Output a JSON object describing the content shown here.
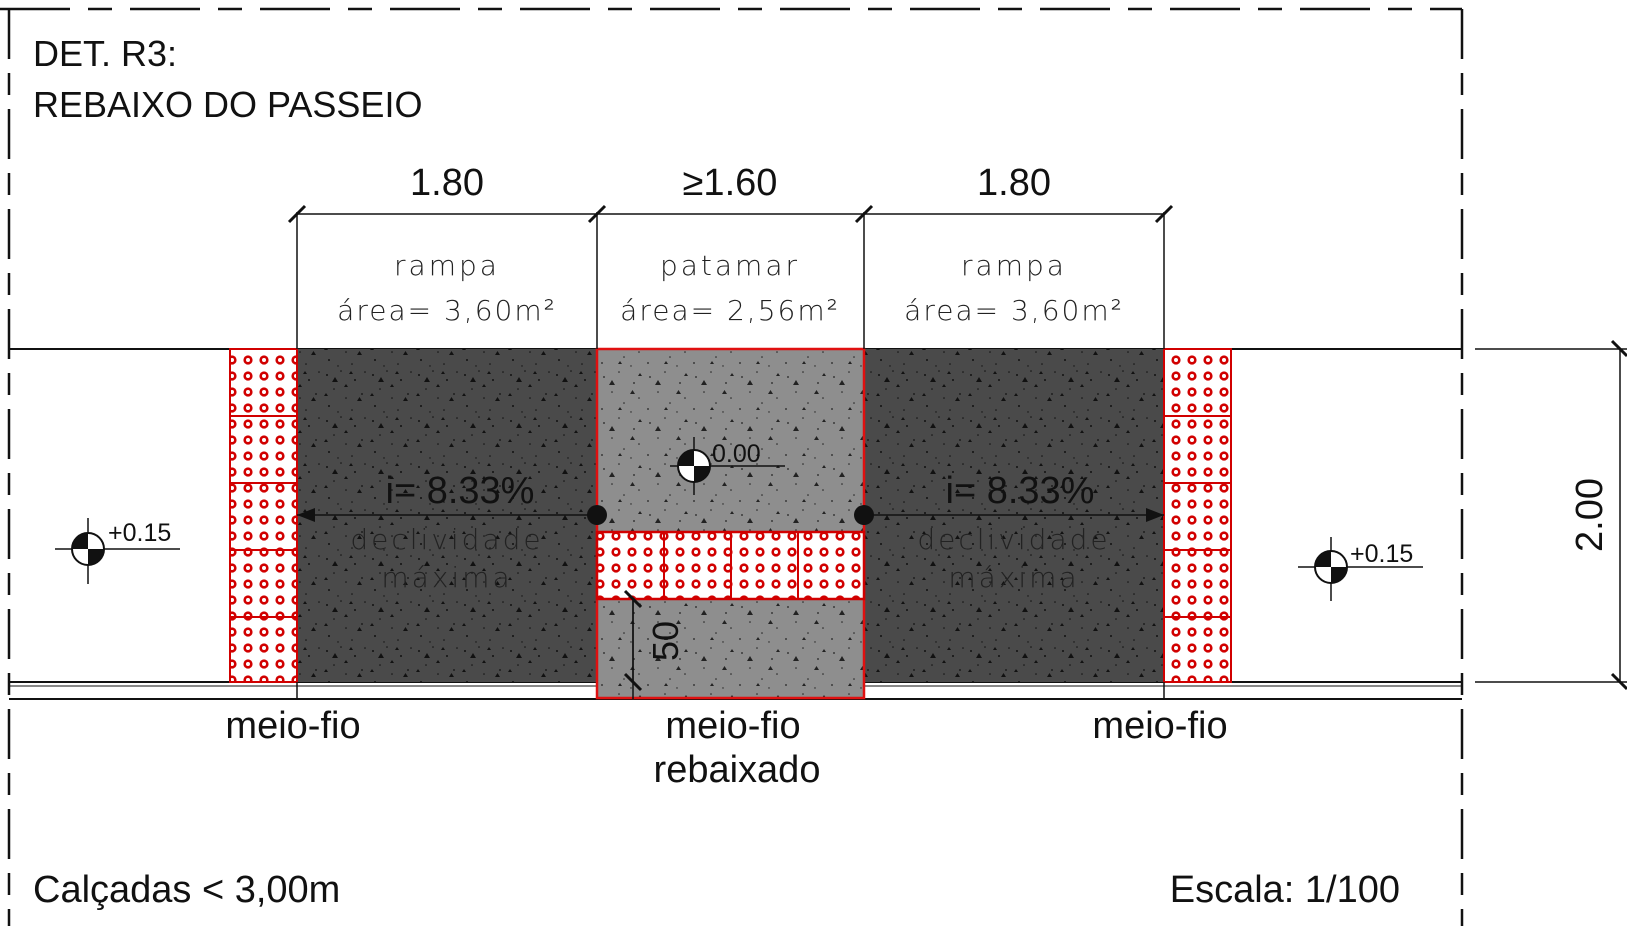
{
  "title": {
    "line1": "DET. R3:",
    "line2": "REBAIXO DO PASSEIO"
  },
  "dimensions": {
    "left": "1.80",
    "center": "≥1.60",
    "right": "1.80",
    "depth": "2.00",
    "tactile": "50"
  },
  "zones": {
    "left": {
      "name": "rampa",
      "area_label": "área=  3,60m²"
    },
    "center": {
      "name": "patamar",
      "area_label": "área=  2,56m²"
    },
    "right": {
      "name": "rampa",
      "area_label": "área=  3,60m²"
    }
  },
  "slopes": {
    "left": {
      "value": "i= 8.33%",
      "line1": "declividade",
      "line2": "máxima"
    },
    "right": {
      "value": "i= 8.33%",
      "line1": "declividade",
      "line2": "máxima"
    }
  },
  "levels": {
    "left": "+0.15",
    "center": "0.00",
    "right": "+0.15"
  },
  "curbs": {
    "left": "meio-fio",
    "center_line1": "meio-fio",
    "center_line2": "rebaixado",
    "right": "meio-fio"
  },
  "notes": {
    "sidewalk": "Calçadas < 3,00m",
    "scale": "Escala: 1/100"
  },
  "colors": {
    "ramp": "#4a4a4a",
    "landing": "#8e8e8e",
    "tactile_red": "#d10000",
    "outline_red": "#e01010"
  }
}
